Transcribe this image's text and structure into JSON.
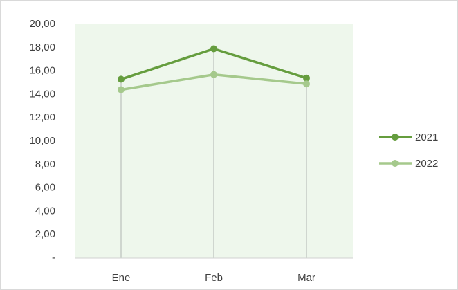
{
  "chart_data": {
    "type": "line",
    "categories": [
      "Ene",
      "Feb",
      "Mar"
    ],
    "series": [
      {
        "name": "2021",
        "color": "#659d3e",
        "values": [
          15.3,
          17.9,
          15.4
        ]
      },
      {
        "name": "2022",
        "color": "#a5c98c",
        "values": [
          14.4,
          15.7,
          14.9
        ]
      }
    ],
    "ylim": [
      0,
      20
    ],
    "yticks": [
      {
        "value": 0,
        "label": "-"
      },
      {
        "value": 2,
        "label": "2,00"
      },
      {
        "value": 4,
        "label": "4,00"
      },
      {
        "value": 6,
        "label": "6,00"
      },
      {
        "value": 8,
        "label": "8,00"
      },
      {
        "value": 10,
        "label": "10,00"
      },
      {
        "value": 12,
        "label": "12,00"
      },
      {
        "value": 14,
        "label": "14,00"
      },
      {
        "value": 16,
        "label": "16,00"
      },
      {
        "value": 18,
        "label": "18,00"
      },
      {
        "value": 20,
        "label": "20,00"
      }
    ],
    "plot_background": "#eef7ec",
    "legend": "right"
  }
}
